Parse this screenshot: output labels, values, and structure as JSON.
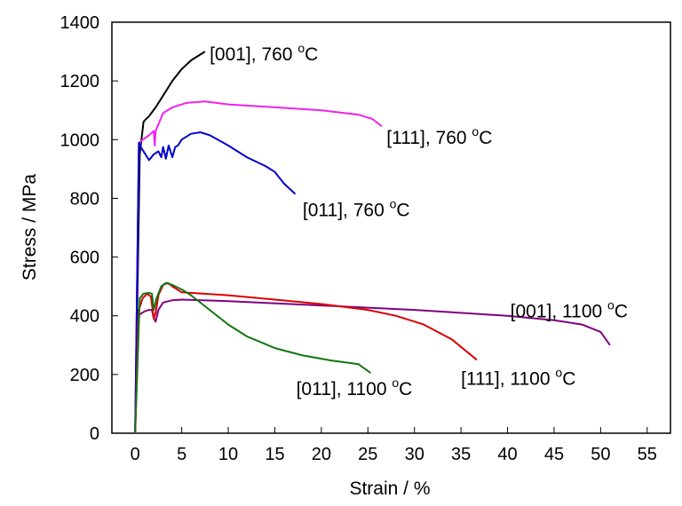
{
  "chart_data": {
    "type": "line",
    "title": "",
    "xlabel": "Strain / %",
    "ylabel": "Stress / MPa",
    "xlim": [
      -2.5,
      57.5
    ],
    "ylim": [
      0,
      1400
    ],
    "xticks": [
      0,
      5,
      10,
      15,
      20,
      25,
      30,
      35,
      40,
      45,
      50,
      55
    ],
    "yticks": [
      0,
      200,
      400,
      600,
      800,
      1000,
      1200,
      1400
    ],
    "grid": false,
    "legend": "none (inline annotations)",
    "series": [
      {
        "name": "[001], 760 °C",
        "color": "#000000",
        "x": [
          0,
          0.5,
          0.9,
          1.0,
          1.5,
          2.2,
          3.0,
          4.0,
          5.0,
          6.0,
          7.5
        ],
        "y": [
          0,
          950,
          1060,
          1065,
          1080,
          1110,
          1150,
          1200,
          1240,
          1270,
          1300
        ]
      },
      {
        "name": "[111], 760 °C",
        "color": "#ee22ee",
        "x": [
          0,
          0.4,
          0.6,
          1.5,
          2.0,
          2.1,
          2.2,
          2.6,
          3.0,
          4.0,
          5.5,
          7.5,
          10,
          15,
          20,
          24,
          25.5,
          26.5
        ],
        "y": [
          0,
          980,
          995,
          1015,
          1030,
          980,
          1030,
          1060,
          1090,
          1110,
          1125,
          1130,
          1120,
          1110,
          1100,
          1085,
          1070,
          1045
        ]
      },
      {
        "name": "[011], 760 °C",
        "color": "#0000cc",
        "x": [
          0,
          0.4,
          0.7,
          1.5,
          2.0,
          2.5,
          2.8,
          3.0,
          3.3,
          3.6,
          4.0,
          4.3,
          4.6,
          5.0,
          6.0,
          7.0,
          8.0,
          10,
          12,
          14,
          15,
          16,
          17.2
        ],
        "y": [
          0,
          990,
          970,
          930,
          950,
          960,
          940,
          975,
          935,
          980,
          940,
          975,
          980,
          1000,
          1020,
          1025,
          1015,
          980,
          940,
          910,
          890,
          850,
          815
        ]
      },
      {
        "name": "[001], 1100 °C",
        "color": "#800080",
        "x": [
          0,
          0.3,
          0.5,
          1.0,
          1.5,
          1.8,
          2.0,
          2.2,
          2.5,
          3.0,
          4.0,
          5.0,
          10,
          20,
          30,
          40,
          45,
          48,
          50,
          51
        ],
        "y": [
          0,
          380,
          405,
          415,
          420,
          420,
          390,
          380,
          420,
          445,
          453,
          455,
          450,
          435,
          420,
          400,
          385,
          370,
          345,
          300
        ]
      },
      {
        "name": "[111], 1100 °C",
        "color": "#dd0000",
        "x": [
          0,
          0.4,
          0.8,
          1.3,
          1.7,
          2.0,
          2.2,
          2.5,
          3.0,
          3.5,
          4.0,
          5.0,
          10,
          15,
          20,
          25,
          28,
          31,
          34,
          36.7
        ],
        "y": [
          0,
          420,
          460,
          475,
          465,
          390,
          410,
          470,
          505,
          512,
          500,
          480,
          470,
          455,
          440,
          420,
          400,
          370,
          320,
          250
        ]
      },
      {
        "name": "[011], 1100 °C",
        "color": "#117711",
        "x": [
          0,
          0.5,
          0.9,
          1.5,
          1.8,
          2.0,
          2.3,
          2.8,
          3.3,
          4.0,
          5.0,
          6.0,
          8.0,
          10,
          12,
          15,
          18,
          21,
          24,
          25.3
        ],
        "y": [
          0,
          460,
          475,
          478,
          475,
          420,
          460,
          500,
          512,
          505,
          490,
          470,
          420,
          370,
          330,
          290,
          265,
          248,
          235,
          205
        ]
      }
    ],
    "annotations": [
      {
        "text": "[001], 760 ",
        "sup": "o",
        "unit": "C",
        "series": 0,
        "at_x": 8.0,
        "at_y": 1270
      },
      {
        "text": "[111], 760 ",
        "sup": "o",
        "unit": "C",
        "series": 1,
        "at_x": 27.0,
        "at_y": 985
      },
      {
        "text": "[011], 760 ",
        "sup": "o",
        "unit": "C",
        "series": 2,
        "at_x": 18.0,
        "at_y": 740
      },
      {
        "text": "[001], 1100 ",
        "sup": "o",
        "unit": "C",
        "series": 3,
        "at_x": 40.3,
        "at_y": 395
      },
      {
        "text": "[111], 1100 ",
        "sup": "o",
        "unit": "C",
        "series": 4,
        "at_x": 35.0,
        "at_y": 165
      },
      {
        "text": "[011], 1100 ",
        "sup": "o",
        "unit": "C",
        "series": 5,
        "at_x": 17.3,
        "at_y": 130
      }
    ]
  }
}
